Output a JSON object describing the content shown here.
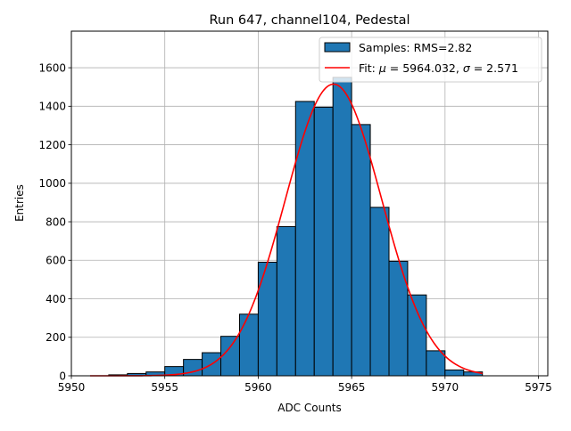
{
  "chart_data": {
    "type": "bar",
    "title": "Run 647, channel104, Pedestal",
    "xlabel": "ADC Counts",
    "ylabel": "Entries",
    "xlim": [
      5950,
      5975.5
    ],
    "ylim": [
      0,
      1790
    ],
    "xticks": [
      5950,
      5955,
      5960,
      5965,
      5970,
      5975
    ],
    "yticks": [
      0,
      200,
      400,
      600,
      800,
      1000,
      1200,
      1400,
      1600
    ],
    "grid": true,
    "legend_position": "top-right",
    "bin_width": 1,
    "bins": [
      {
        "left": 5952,
        "count": 5
      },
      {
        "left": 5953,
        "count": 12
      },
      {
        "left": 5954,
        "count": 20
      },
      {
        "left": 5955,
        "count": 48
      },
      {
        "left": 5956,
        "count": 85
      },
      {
        "left": 5957,
        "count": 120
      },
      {
        "left": 5958,
        "count": 205
      },
      {
        "left": 5959,
        "count": 320
      },
      {
        "left": 5960,
        "count": 590
      },
      {
        "left": 5961,
        "count": 775
      },
      {
        "left": 5962,
        "count": 1425
      },
      {
        "left": 5963,
        "count": 1395
      },
      {
        "left": 5964,
        "count": 1550
      },
      {
        "left": 5965,
        "count": 1305
      },
      {
        "left": 5966,
        "count": 875
      },
      {
        "left": 5967,
        "count": 595
      },
      {
        "left": 5968,
        "count": 420
      },
      {
        "left": 5969,
        "count": 130
      },
      {
        "left": 5970,
        "count": 30
      },
      {
        "left": 5971,
        "count": 20
      }
    ],
    "fit": {
      "mu": 5964.032,
      "sigma": 2.571,
      "amplitude": 1515,
      "x_range": [
        5951,
        5972
      ]
    },
    "series": [
      {
        "name": "Samples: RMS=2.82",
        "color": "#1f77b4"
      },
      {
        "name_prefix": "Fit: ",
        "name_mu": "μ",
        "name_mid": " = 5964.032, ",
        "name_sigma": "σ",
        "name_suffix": " = 2.571",
        "color": "#ff0000"
      }
    ]
  }
}
